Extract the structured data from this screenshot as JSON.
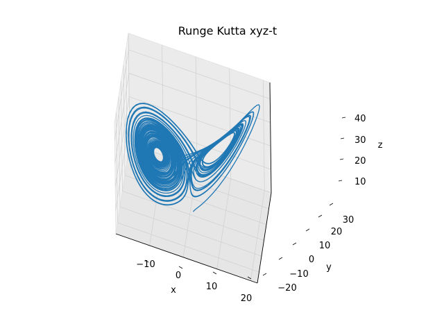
{
  "chart_data": {
    "type": "line",
    "projection": "3d",
    "title": "Runge Kutta xyz-t",
    "xlabel": "x",
    "ylabel": "y",
    "zlabel": "z",
    "xticks": [
      "−10",
      "0",
      "10",
      "20"
    ],
    "yticks": [
      "−20",
      "−10",
      "0",
      "10",
      "20",
      "30"
    ],
    "zticks": [
      "10",
      "20",
      "30",
      "40"
    ],
    "xlim": [
      -20,
      22
    ],
    "ylim": [
      -27,
      30
    ],
    "zlim": [
      0,
      47
    ],
    "grid": true,
    "series": [
      {
        "color": "#1f77b4",
        "generator": "lorenz",
        "params": {
          "sigma": 10,
          "rho": 28,
          "beta": 2.6667,
          "x0": 1,
          "y0": 1,
          "z0": 1,
          "dt": 0.01,
          "steps": 5000
        }
      }
    ]
  }
}
